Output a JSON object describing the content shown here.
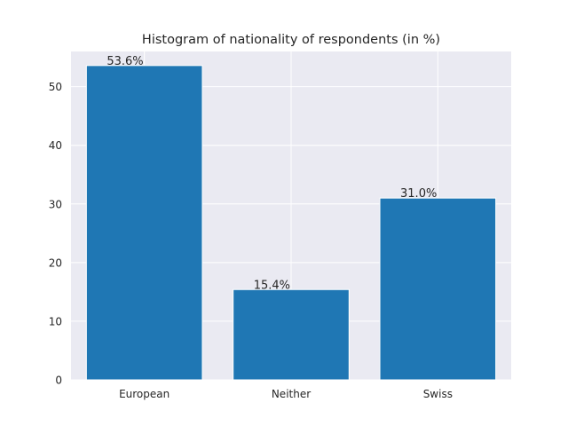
{
  "colors": {
    "plot_background": "#eaeaf2",
    "bar": "#1f77b4",
    "grid": "#ffffff",
    "text": "#262626"
  },
  "chart_data": {
    "type": "bar",
    "title": "Histogram of nationality of respondents (in %)",
    "xlabel": "",
    "ylabel": "",
    "categories": [
      "European",
      "Neither",
      "Swiss"
    ],
    "values": [
      53.6,
      15.4,
      31.0
    ],
    "value_labels": [
      "53.6%",
      "15.4%",
      "31.0%"
    ],
    "ylim": [
      0,
      56
    ],
    "yticks": [
      0,
      10,
      20,
      30,
      40,
      50
    ],
    "ytick_labels": [
      "0",
      "10",
      "20",
      "30",
      "40",
      "50"
    ],
    "grid": true,
    "legend": "none"
  }
}
